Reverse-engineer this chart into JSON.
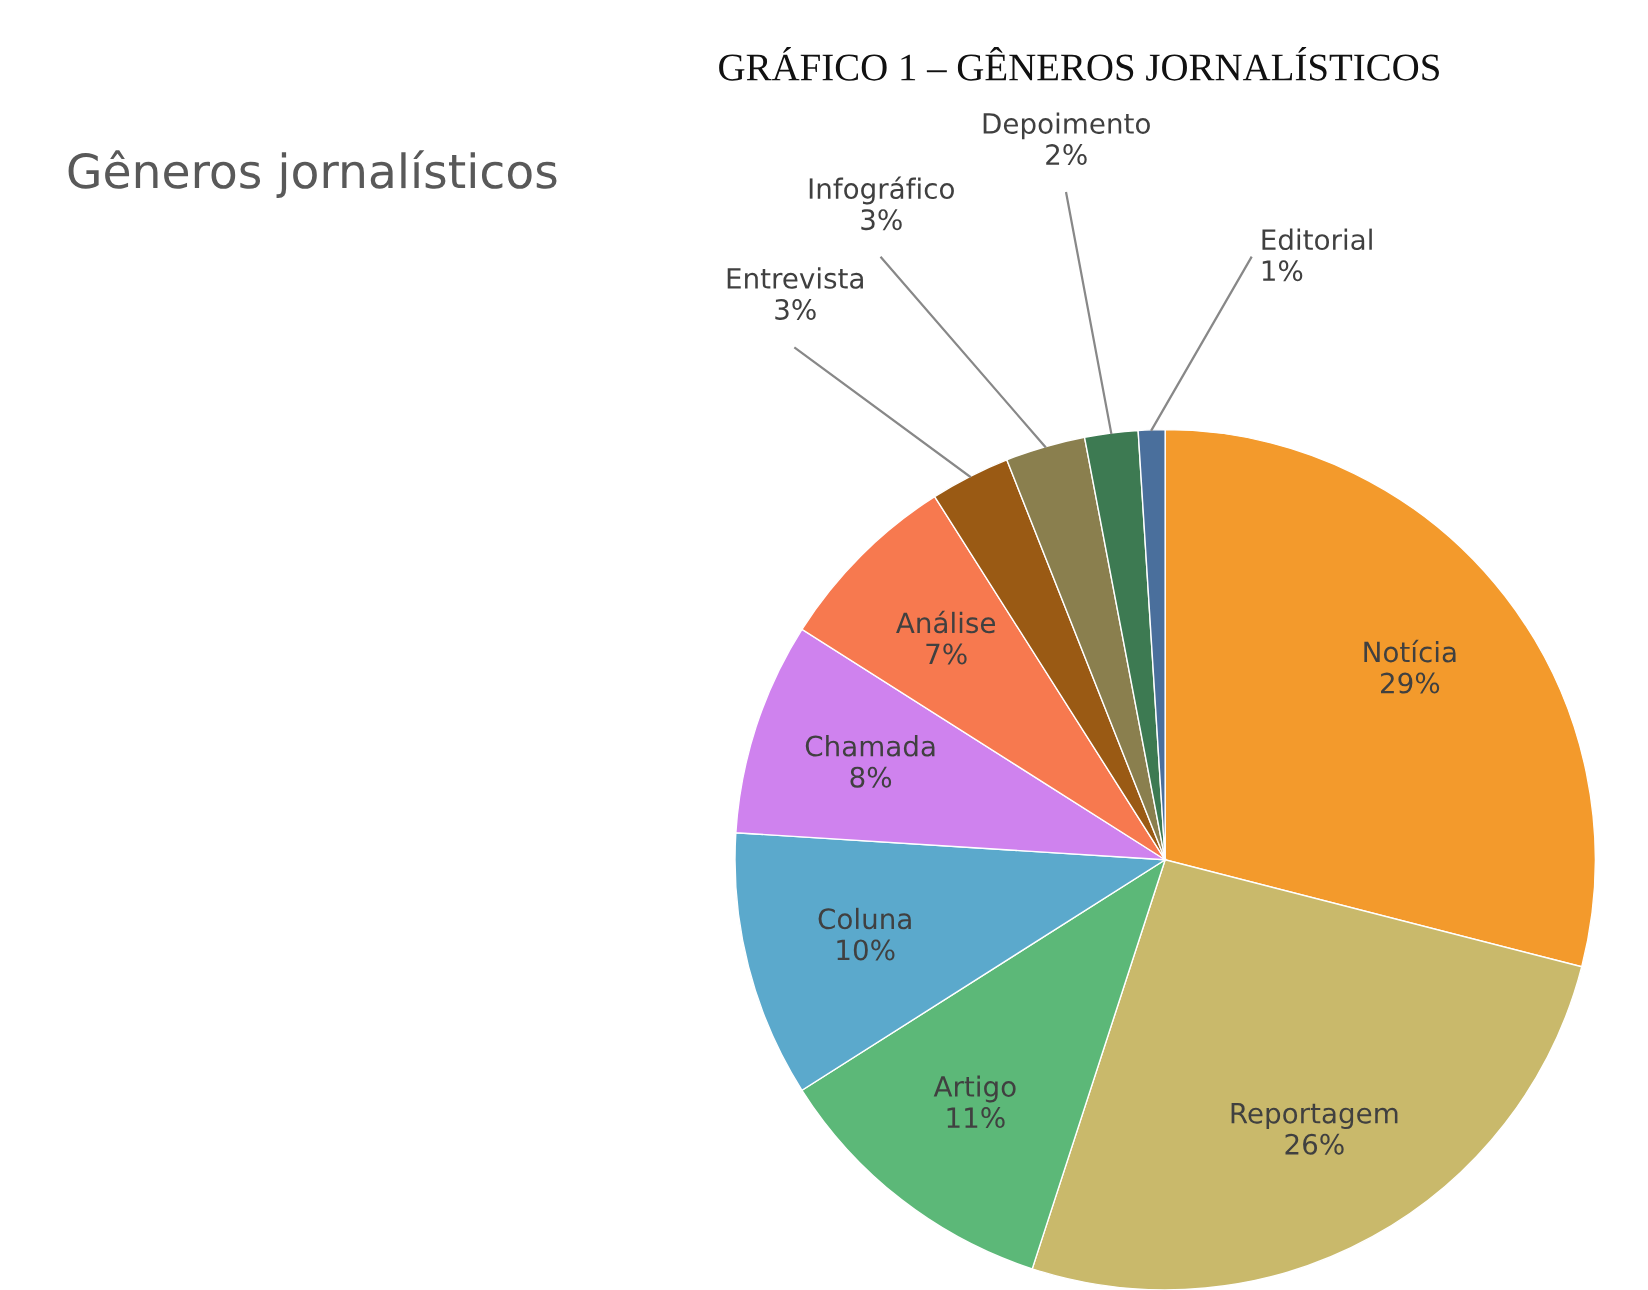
{
  "chart_data": {
    "type": "pie",
    "title": "GRÁFICO 1 – GÊNEROS JORNALÍSTICOS",
    "subtitle": "Gêneros jornalísticos",
    "categories": [
      "Notícia",
      "Reportagem",
      "Artigo",
      "Coluna",
      "Chamada",
      "Análise",
      "Entrevista",
      "Infográfico",
      "Depoimento",
      "Editorial"
    ],
    "values": [
      29,
      26,
      11,
      10,
      8,
      7,
      3,
      3,
      2,
      1
    ],
    "value_labels": [
      "29%",
      "26%",
      "11%",
      "10%",
      "8%",
      "7%",
      "3%",
      "3%",
      "2%",
      "1%"
    ],
    "colors": [
      "#f39a2c",
      "#c9b96b",
      "#5cb878",
      "#5ba9cc",
      "#cf82ee",
      "#f7794f",
      "#9a5a14",
      "#8a7f4e",
      "#3d7a52",
      "#4a6f9c"
    ]
  }
}
